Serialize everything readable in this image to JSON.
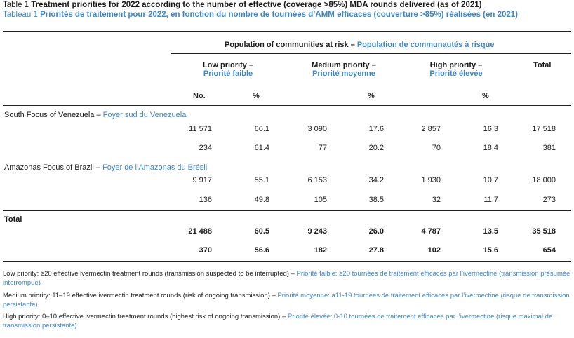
{
  "title": {
    "en_prefix": "Table 1",
    "en_text": "Treatment priorities for 2022 according to the number of effective (coverage >85%) MDA rounds delivered (as of 2021)",
    "fr_prefix": "Tableau 1",
    "fr_text": "Priorités de traitement pour 2022, en fonction du nombre de tournées d’AMM efficaces (couverture >85%) réalisées (en 2021)"
  },
  "header": {
    "population_en": "Population of communities at risk",
    "population_fr": "Population de communautés à risque",
    "dash": " – ",
    "low_en": "Low priority –",
    "low_fr": "Priorité faible",
    "medium_en": "Medium priority –",
    "medium_fr": "Priorité moyenne",
    "high_en": "High priority –",
    "high_fr": "Priorité élevée",
    "total": "Total",
    "no": "No.",
    "pct": "%"
  },
  "rows": [
    {
      "label_en": "South Focus of Venezuela",
      "label_fr": "Foyer sud du Venezuela",
      "values": [
        [
          "11 571",
          "66.1",
          "3 090",
          "17.6",
          "2 857",
          "16.3",
          "17 518"
        ],
        [
          "234",
          "61.4",
          "77",
          "20.2",
          "70",
          "18.4",
          "381"
        ]
      ]
    },
    {
      "label_en": "Amazonas Focus of Brazil",
      "label_fr": "Foyer de l’Amazonas du Brésil",
      "values": [
        [
          "9 917",
          "55.1",
          "6 153",
          "34.2",
          "1 930",
          "10.7",
          "18 000"
        ],
        [
          "136",
          "49.8",
          "105",
          "38.5",
          "32",
          "11.7",
          "273"
        ]
      ]
    },
    {
      "label_en": "Total",
      "label_fr": "",
      "values": [
        [
          "21 488",
          "60.5",
          "9 243",
          "26.0",
          "4 787",
          "13.5",
          "35 518"
        ],
        [
          "370",
          "56.6",
          "182",
          "27.8",
          "102",
          "15.6",
          "654"
        ]
      ]
    }
  ],
  "footnotes": [
    {
      "en": "Low priority: ≥20 effective ivermectin treatment rounds (transmission suspected to be interrupted)",
      "fr": "Priorité faible: ≥20 tournées de traitement efficaces par l’ivermectine (transmission présumée interrompue)"
    },
    {
      "en": "Medium priority: 11–19 effective ivermectin treatment rounds (risk of ongoing transmission)",
      "fr": "Priorité moyenne: a11-19 tournées de traitement efficaces par l’ivermectine (risque de transmission persistante)"
    },
    {
      "en": "High priority: 0–10 effective ivermectin treatment rounds (highest risk of ongoing transmission)",
      "fr": "Priorité élevée: 0-10 tournées de traitement efficaces par l’ivermectine (risque maximal de transmission persistante)"
    }
  ],
  "colors": {
    "accent": "#3b86c6",
    "text": "#1a1a1a"
  }
}
